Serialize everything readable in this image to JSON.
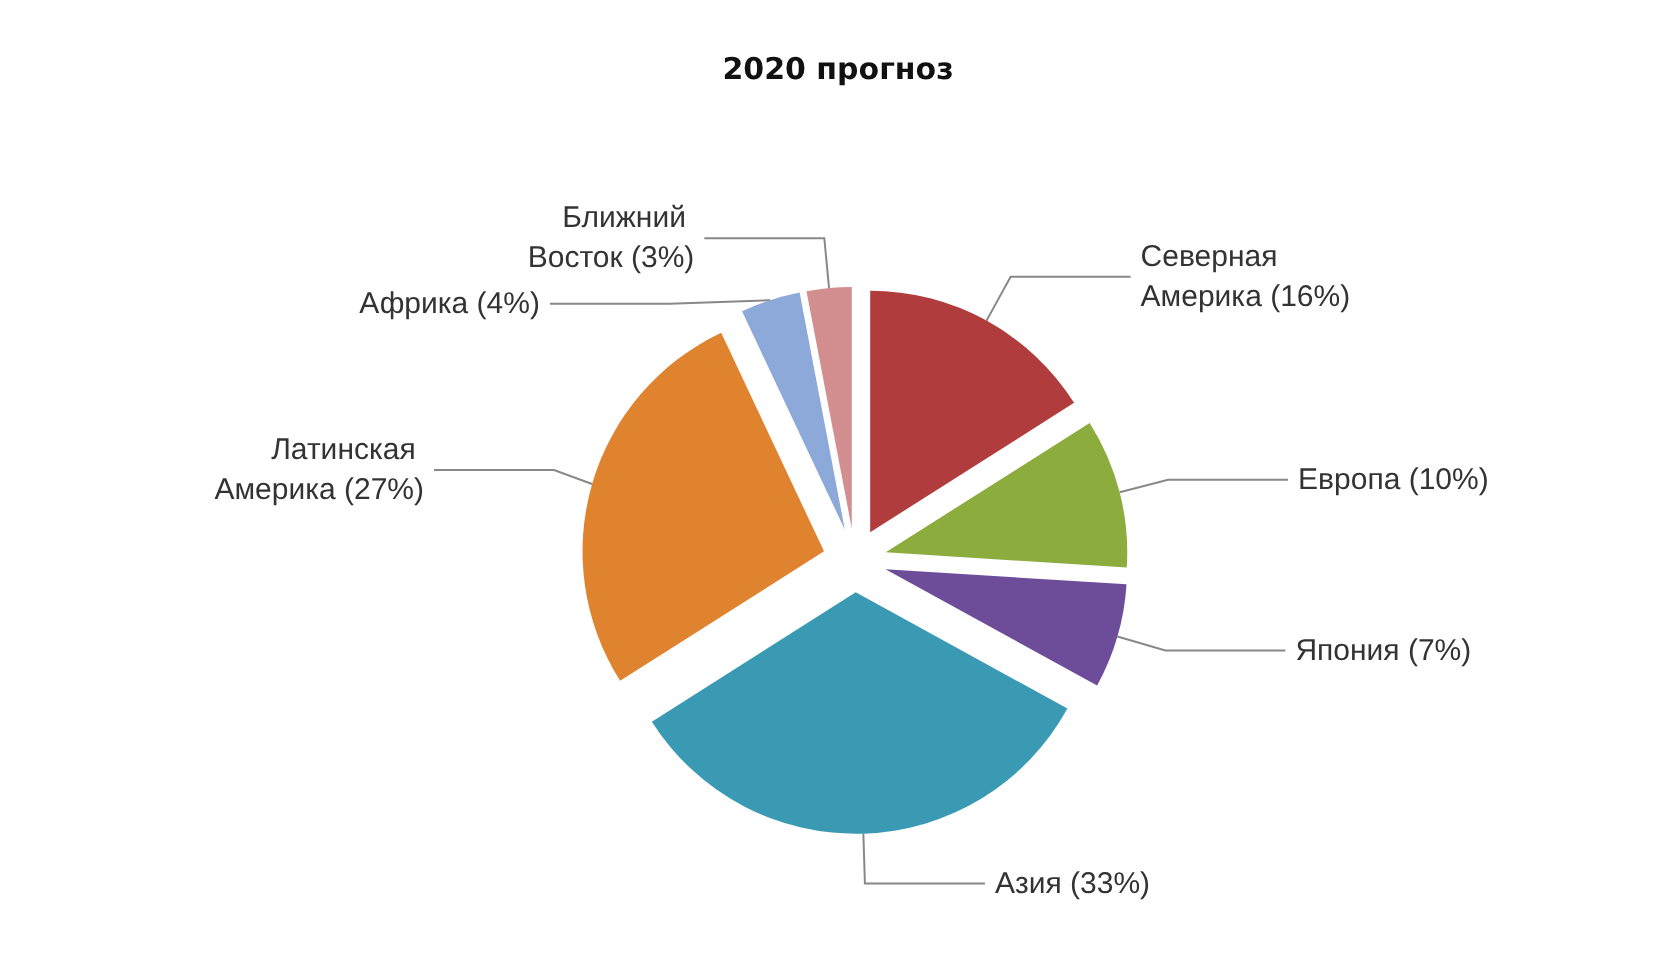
{
  "chart_data": {
    "type": "pie",
    "title": "2020 прогноз",
    "categories": [
      "Северная Америка",
      "Европа",
      "Япония",
      "Азия",
      "Латинская Америка",
      "Африка",
      "Ближний Восток"
    ],
    "values": [
      16,
      10,
      7,
      33,
      27,
      4,
      3
    ],
    "value_labels": [
      "(16%)",
      "(10%)",
      "(7%)",
      "(33%)",
      "(27%)",
      "(4%)",
      "(3%)"
    ],
    "colors": [
      "#b03c3e",
      "#8cad3e",
      "#6d4d9a",
      "#3a9ab3",
      "#e0832f",
      "#8da9d9",
      "#d38f90"
    ],
    "legend": false
  }
}
